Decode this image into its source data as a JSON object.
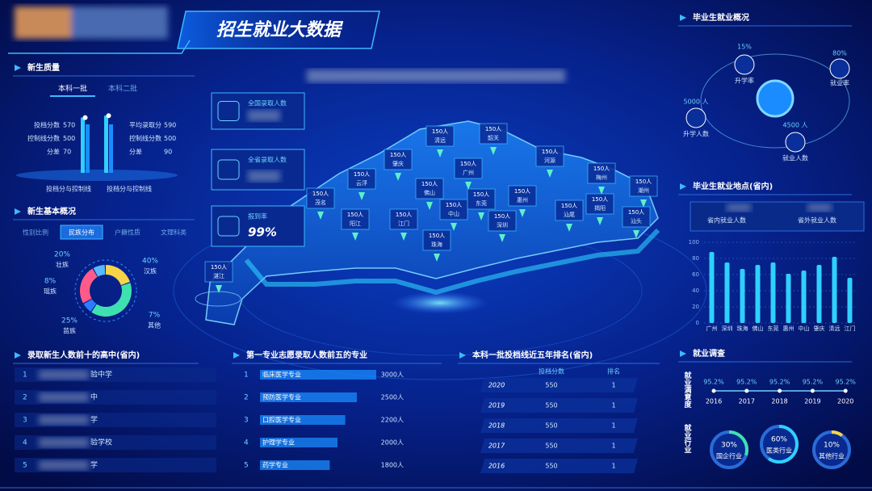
{
  "header": {
    "title": "招生就业大数据"
  },
  "quality": {
    "title": "新生质量",
    "tabs": [
      "本科一批",
      "本科二批"
    ],
    "groups": [
      {
        "caption": "投档分与控制线",
        "items": [
          {
            "label": "投档分数",
            "value": 570
          },
          {
            "label": "控制线分数",
            "value": 500
          },
          {
            "label": "分差",
            "value": 70
          }
        ]
      },
      {
        "caption": "投档分与控制线",
        "items": [
          {
            "label": "平均录取分",
            "value": 590
          },
          {
            "label": "控制线分数",
            "value": 500
          },
          {
            "label": "分差",
            "value": 90
          }
        ]
      }
    ]
  },
  "overview": {
    "title": "新生基本概况",
    "tabs": [
      "性别比例",
      "民族分布",
      "户籍性质",
      "文理科类"
    ],
    "segments": [
      {
        "name": "壮族",
        "value": 20,
        "value_label": "20%",
        "color": "#f5d44a"
      },
      {
        "name": "汉族",
        "value": 40,
        "value_label": "40%",
        "color": "#3fe0b0"
      },
      {
        "name": "其他",
        "value": 7,
        "value_label": "7%",
        "color": "#2f7bff"
      },
      {
        "name": "苗族",
        "value": 25,
        "value_label": "25%",
        "color": "#ff5a8a"
      },
      {
        "name": "瑶族",
        "value": 8,
        "value_label": "8%",
        "color": "#5ab8ff"
      }
    ]
  },
  "kpis": [
    {
      "label": "全国录取人数"
    },
    {
      "label": "全省录取人数"
    },
    {
      "label": "报到率",
      "value_label": "99%"
    }
  ],
  "map": {
    "cities": [
      {
        "name": "韶关",
        "count": "150人"
      },
      {
        "name": "清远",
        "count": "150人"
      },
      {
        "name": "河源",
        "count": "150人"
      },
      {
        "name": "肇庆",
        "count": "150人"
      },
      {
        "name": "广州",
        "count": "150人"
      },
      {
        "name": "梅州",
        "count": "150人"
      },
      {
        "name": "云浮",
        "count": "150人"
      },
      {
        "name": "佛山",
        "count": "150人"
      },
      {
        "name": "惠州",
        "count": "150人"
      },
      {
        "name": "潮州",
        "count": "150人"
      },
      {
        "name": "茂名",
        "count": "150人"
      },
      {
        "name": "阳江",
        "count": "150人"
      },
      {
        "name": "江门",
        "count": "150人"
      },
      {
        "name": "中山",
        "count": "150人"
      },
      {
        "name": "东莞",
        "count": "150人"
      },
      {
        "name": "深圳",
        "count": "150人"
      },
      {
        "name": "汕尾",
        "count": "150人"
      },
      {
        "name": "揭阳",
        "count": "150人"
      },
      {
        "name": "汕头",
        "count": "150人"
      },
      {
        "name": "珠海",
        "count": "150人"
      },
      {
        "name": "湛江",
        "count": "150人"
      }
    ]
  },
  "graduates": {
    "title": "毕业生就业概况",
    "items": [
      {
        "label": "升学率",
        "value_label": "15%"
      },
      {
        "label": "就业率",
        "value_label": "80%"
      },
      {
        "label": "升学人数",
        "value_label": "5000 人"
      },
      {
        "label": "就业人数",
        "value_label": "4500 人"
      }
    ]
  },
  "location": {
    "title": "毕业生就业地点(省内)",
    "summary": [
      "省内就业人数",
      "省外就业人数"
    ],
    "chart_data": {
      "type": "bar",
      "categories": [
        "广州",
        "深圳",
        "珠海",
        "佛山",
        "东莞",
        "惠州",
        "中山",
        "肇庆",
        "清远",
        "江门"
      ],
      "values": [
        88,
        75,
        67,
        72,
        75,
        61,
        65,
        72,
        82,
        56
      ],
      "color": "#2fd0ff",
      "ylim": [
        0,
        100
      ],
      "yticks": [
        0,
        20,
        40,
        60,
        80,
        100
      ],
      "grid": true
    }
  },
  "survey": {
    "title": "就业调查",
    "satisfaction": {
      "label": "就业满意度",
      "x": [
        "2016",
        "2017",
        "2018",
        "2019",
        "2020"
      ],
      "values": [
        95.2,
        95.2,
        95.2,
        95.2,
        95.2
      ],
      "value_labels": [
        "95.2%",
        "95.2%",
        "95.2%",
        "95.2%",
        "95.2%"
      ]
    },
    "industry": {
      "label": "就业行业",
      "items": [
        {
          "name": "国企行业",
          "value": 30,
          "value_label": "30%",
          "color": "#3fe0b0"
        },
        {
          "name": "医类行业",
          "value": 60,
          "value_label": "60%",
          "color": "#2fd0ff"
        },
        {
          "name": "其他行业",
          "value": 10,
          "value_label": "10%",
          "color": "#f5d44a"
        }
      ]
    }
  },
  "schools": {
    "title": "录取新生人数前十的高中(省内)",
    "rows": [
      {
        "rank": 1,
        "name": "验中学"
      },
      {
        "rank": 2,
        "name": "中"
      },
      {
        "rank": 3,
        "name": "学"
      },
      {
        "rank": 4,
        "name": "验学校"
      },
      {
        "rank": 5,
        "name": "学"
      }
    ]
  },
  "majors": {
    "title": "第一专业志愿录取人数前五的专业",
    "rows": [
      {
        "rank": 1,
        "name": "临床医学专业",
        "value": 3000,
        "value_label": "3000人"
      },
      {
        "rank": 2,
        "name": "预防医学专业",
        "value": 2500,
        "value_label": "2500人"
      },
      {
        "rank": 3,
        "name": "口腔医学专业",
        "value": 2200,
        "value_label": "2200人"
      },
      {
        "rank": 4,
        "name": "护理学专业",
        "value": 2000,
        "value_label": "2000人"
      },
      {
        "rank": 5,
        "name": "药学专业",
        "value": 1800,
        "value_label": "1800人"
      }
    ]
  },
  "rank_table": {
    "title": "本科一批投档线近五年排名(省内)",
    "columns": [
      "投档分数",
      "排名"
    ],
    "rows": [
      {
        "year": "2020",
        "score": 550,
        "rank": 1
      },
      {
        "year": "2019",
        "score": 550,
        "rank": 1
      },
      {
        "year": "2018",
        "score": 550,
        "rank": 1
      },
      {
        "year": "2017",
        "score": 550,
        "rank": 1
      },
      {
        "year": "2016",
        "score": 550,
        "rank": 1
      }
    ]
  }
}
